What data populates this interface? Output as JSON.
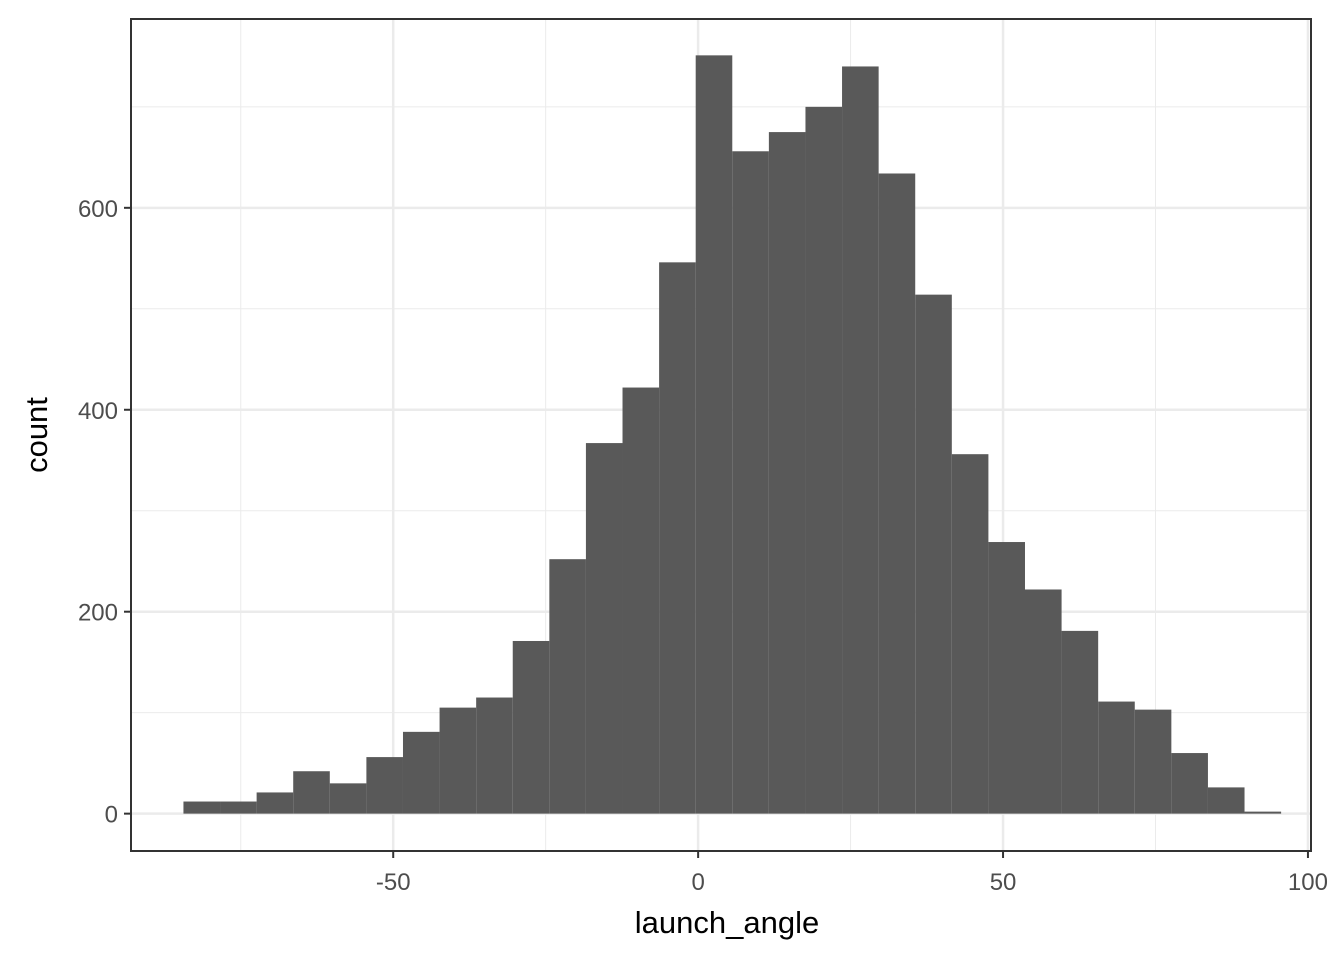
{
  "chart_data": {
    "type": "bar",
    "xlabel": "launch_angle",
    "ylabel": "count",
    "xlim": [
      -93,
      100.5
    ],
    "ylim": [
      -37,
      787
    ],
    "x_ticks": [
      -50,
      0,
      50,
      100
    ],
    "x_tick_labels": [
      "-50",
      "0",
      "50",
      "100"
    ],
    "y_ticks": [
      0,
      200,
      400,
      600
    ],
    "y_tick_labels": [
      "0",
      "200",
      "400",
      "600"
    ],
    "x_minor_ticks": [
      -75,
      -25,
      25,
      75
    ],
    "y_minor_ticks": [
      100,
      300,
      500,
      700
    ],
    "grid": true,
    "bar_color": "#595959",
    "bin_width": 6,
    "bin_starts": [
      -84.4,
      -78.4,
      -72.4,
      -66.4,
      -60.4,
      -54.4,
      -48.4,
      -42.4,
      -36.4,
      -30.4,
      -24.4,
      -18.4,
      -12.4,
      -6.4,
      -0.4,
      5.6,
      11.6,
      17.6,
      23.6,
      29.6,
      35.6,
      41.6,
      47.6,
      53.6,
      59.6,
      65.6,
      71.6,
      77.6,
      83.6,
      89.6
    ],
    "values": [
      12,
      12,
      21,
      42,
      30,
      56,
      81,
      105,
      115,
      171,
      252,
      367,
      422,
      546,
      751,
      656,
      675,
      700,
      740,
      634,
      514,
      356,
      269,
      222,
      181,
      111,
      103,
      60,
      26,
      2
    ]
  }
}
